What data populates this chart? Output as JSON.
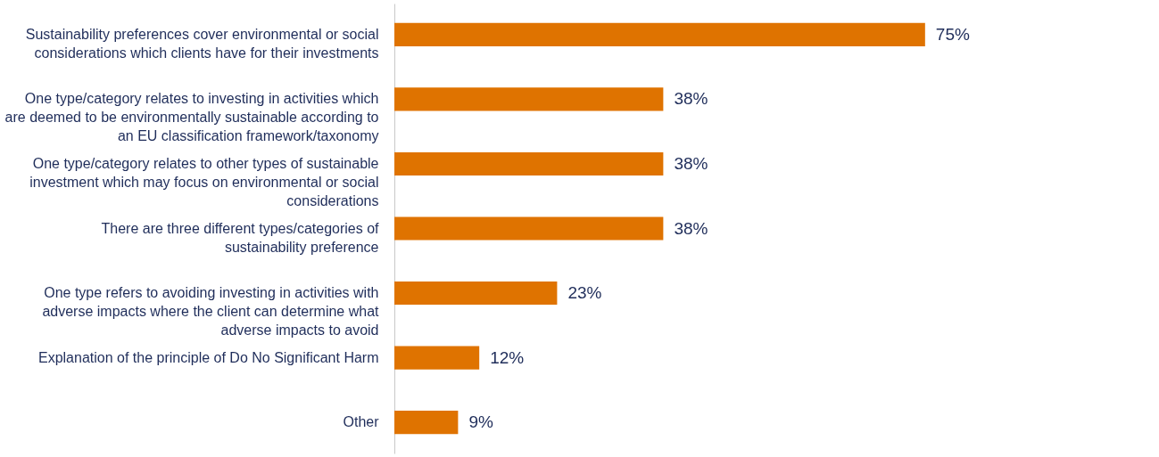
{
  "chart_data": {
    "type": "bar",
    "orientation": "horizontal",
    "categories": [
      "Sustainability preferences cover environmental or social considerations which clients have for their investments",
      "One type/category relates to investing in activities which are deemed to be environmentally sustainable according to an EU classification framework/taxonomy",
      "One type/category relates to other types of sustainable investment which may focus on environmental or social considerations",
      "There are three different types/categories of sustainability preference",
      "One type refers to avoiding investing in activities with adverse impacts where the client can determine what adverse impacts to avoid",
      "Explanation of the principle of Do No Significant Harm",
      "Other"
    ],
    "values": [
      75,
      38,
      38,
      38,
      23,
      12,
      9
    ],
    "value_labels": [
      "75%",
      "38%",
      "38%",
      "38%",
      "23%",
      "12%",
      "9%"
    ],
    "color": "#df7300"
  }
}
